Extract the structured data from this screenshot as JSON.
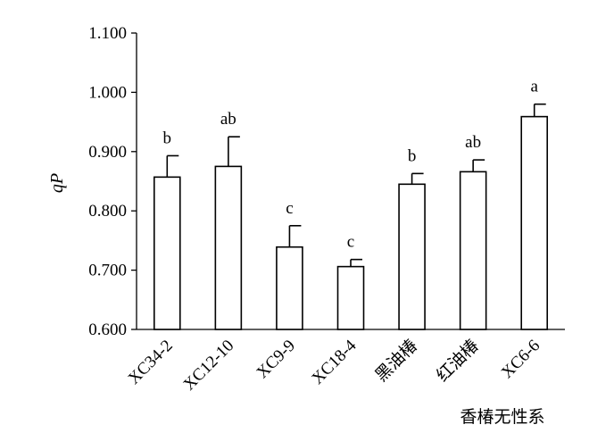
{
  "chart_data": {
    "type": "bar",
    "title": "",
    "ylabel": "qP",
    "xlabel": "香椿无性系",
    "ylim": [
      0.6,
      1.1
    ],
    "yticks": [
      "0.600",
      "0.700",
      "0.800",
      "0.900",
      "1.000",
      "1.100"
    ],
    "categories": [
      "XC34-2",
      "XC12-10",
      "XC9-9",
      "XC18-4",
      "黑油椿",
      "红油椿",
      "XC6-6"
    ],
    "values": [
      0.857,
      0.875,
      0.739,
      0.706,
      0.845,
      0.866,
      0.959
    ],
    "errors": [
      0.036,
      0.05,
      0.036,
      0.012,
      0.018,
      0.02,
      0.021
    ],
    "significance": [
      "b",
      "ab",
      "c",
      "c",
      "b",
      "ab",
      "a"
    ],
    "bar_fill": "#ffffff",
    "bar_stroke": "#000000",
    "grid": false
  }
}
